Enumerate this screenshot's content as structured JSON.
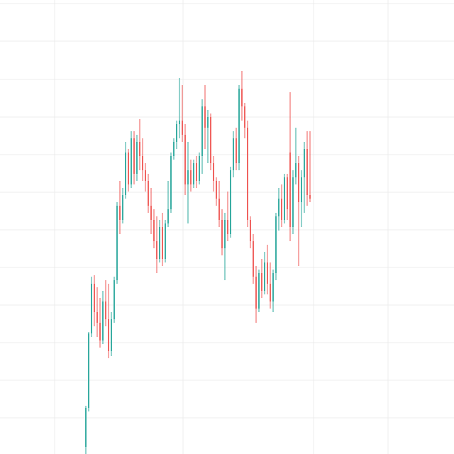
{
  "chart_data": {
    "type": "candlestick",
    "x": [
      121,
      125,
      129,
      133,
      137,
      141,
      145,
      149,
      153,
      157,
      161,
      165,
      169,
      173,
      177,
      181,
      185,
      189,
      193,
      197,
      201,
      205,
      209,
      213,
      217,
      221,
      225,
      229,
      233,
      237,
      241,
      245,
      249,
      253,
      257,
      261,
      265,
      269,
      273,
      277,
      281,
      285,
      289,
      293,
      297,
      301,
      305,
      309,
      313,
      317,
      321,
      325,
      329,
      333,
      337,
      341,
      345,
      349,
      353,
      357,
      361,
      365,
      369,
      373,
      377,
      381,
      385,
      389,
      393,
      397,
      401,
      405,
      409,
      413,
      417,
      421,
      425,
      429,
      433,
      437
    ],
    "open": [
      10,
      65,
      170,
      240,
      200,
      185,
      160,
      215,
      190,
      145,
      190,
      245,
      350,
      330,
      365,
      425,
      380,
      445,
      395,
      440,
      420,
      400,
      385,
      350,
      330,
      300,
      275,
      320,
      275,
      325,
      345,
      420,
      440,
      465,
      470,
      450,
      380,
      400,
      380,
      410,
      385,
      420,
      490,
      460,
      475,
      410,
      385,
      360,
      330,
      290,
      330,
      310,
      400,
      445,
      410,
      515,
      490,
      460,
      330,
      300,
      250,
      205,
      255,
      230,
      270,
      240,
      215,
      255,
      335,
      360,
      330,
      390,
      425,
      320,
      390,
      410,
      355,
      390,
      430,
      365
    ],
    "high": [
      68,
      172,
      250,
      252,
      235,
      220,
      230,
      245,
      240,
      200,
      250,
      355,
      385,
      375,
      440,
      430,
      455,
      455,
      450,
      472,
      445,
      410,
      395,
      375,
      345,
      335,
      330,
      340,
      330,
      385,
      425,
      445,
      470,
      530,
      520,
      465,
      440,
      415,
      415,
      420,
      425,
      500,
      520,
      485,
      480,
      420,
      390,
      385,
      345,
      340,
      370,
      405,
      455,
      460,
      520,
      540,
      495,
      470,
      335,
      310,
      265,
      260,
      275,
      285,
      295,
      270,
      260,
      340,
      375,
      380,
      395,
      395,
      510,
      400,
      460,
      420,
      400,
      440,
      455,
      455
    ],
    "low": [
      0,
      60,
      165,
      180,
      165,
      150,
      155,
      180,
      135,
      138,
      185,
      240,
      310,
      325,
      360,
      370,
      375,
      380,
      385,
      400,
      385,
      370,
      340,
      310,
      290,
      255,
      270,
      265,
      270,
      320,
      340,
      415,
      430,
      445,
      440,
      365,
      325,
      370,
      375,
      375,
      380,
      395,
      430,
      410,
      400,
      370,
      350,
      320,
      280,
      245,
      300,
      305,
      390,
      400,
      400,
      470,
      445,
      320,
      290,
      240,
      185,
      200,
      220,
      225,
      225,
      205,
      200,
      245,
      315,
      320,
      325,
      330,
      300,
      310,
      380,
      265,
      320,
      340,
      350,
      355
    ],
    "close": [
      65,
      170,
      240,
      200,
      185,
      160,
      215,
      190,
      145,
      190,
      245,
      350,
      330,
      365,
      425,
      380,
      445,
      395,
      440,
      420,
      400,
      385,
      350,
      330,
      300,
      275,
      320,
      275,
      325,
      345,
      420,
      440,
      465,
      470,
      450,
      380,
      400,
      380,
      410,
      385,
      420,
      490,
      460,
      475,
      410,
      385,
      360,
      330,
      290,
      330,
      310,
      400,
      445,
      410,
      515,
      490,
      460,
      330,
      300,
      250,
      205,
      255,
      230,
      270,
      240,
      215,
      255,
      335,
      360,
      330,
      390,
      345,
      320,
      390,
      410,
      355,
      390,
      430,
      365,
      360
    ],
    "up_color": "#26a69a",
    "down_color": "#ef5350",
    "grid_color": "#ececec",
    "xlim": [
      0,
      640
    ],
    "ylim": [
      0,
      640
    ],
    "xticks": [
      77,
      258,
      442,
      547
    ],
    "yticks": [
      51,
      104,
      157,
      210,
      263,
      316,
      369,
      422,
      475,
      528,
      582,
      635
    ],
    "grid": true
  }
}
